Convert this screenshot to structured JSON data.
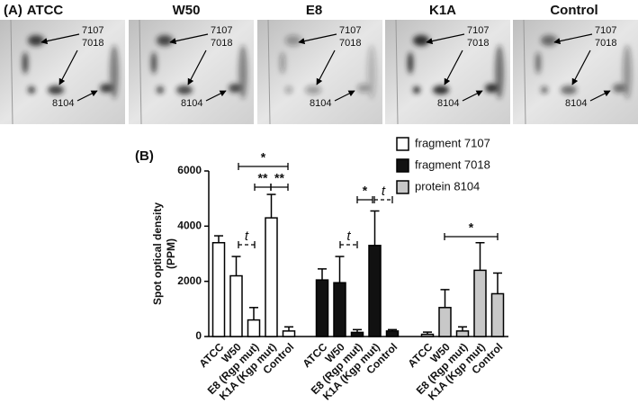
{
  "panel_a": {
    "label": "(A)",
    "lanes": [
      "ATCC",
      "W50",
      "E8",
      "K1A",
      "Control"
    ],
    "spots": [
      "7107",
      "7018",
      "8104"
    ]
  },
  "chart_data": {
    "type": "bar",
    "panel_label": "(B)",
    "ylabel": [
      "Spot optical density",
      "(PPM)"
    ],
    "categories": [
      "ATCC",
      "W50",
      "E8 (Rgp mut)",
      "K1A (Kgp mut)",
      "Control"
    ],
    "series": [
      {
        "name": "fragment 7107",
        "color": "#ffffff",
        "values": [
          3400,
          2200,
          600,
          4300,
          200
        ],
        "errors": [
          250,
          700,
          450,
          850,
          150
        ]
      },
      {
        "name": "fragment 7018",
        "color": "#111111",
        "values": [
          2050,
          1950,
          150,
          3300,
          200
        ],
        "errors": [
          400,
          950,
          100,
          1250,
          50
        ]
      },
      {
        "name": "protein 8104",
        "color": "#c8c8c8",
        "values": [
          80,
          1050,
          200,
          2400,
          1550
        ],
        "errors": [
          80,
          650,
          150,
          1000,
          750
        ]
      }
    ],
    "ylim": [
      0,
      6000
    ],
    "yticks": [
      0,
      2000,
      4000,
      6000
    ],
    "annotations": [
      "*",
      "**",
      "**",
      "t",
      "*",
      "t",
      "t",
      "*"
    ]
  }
}
